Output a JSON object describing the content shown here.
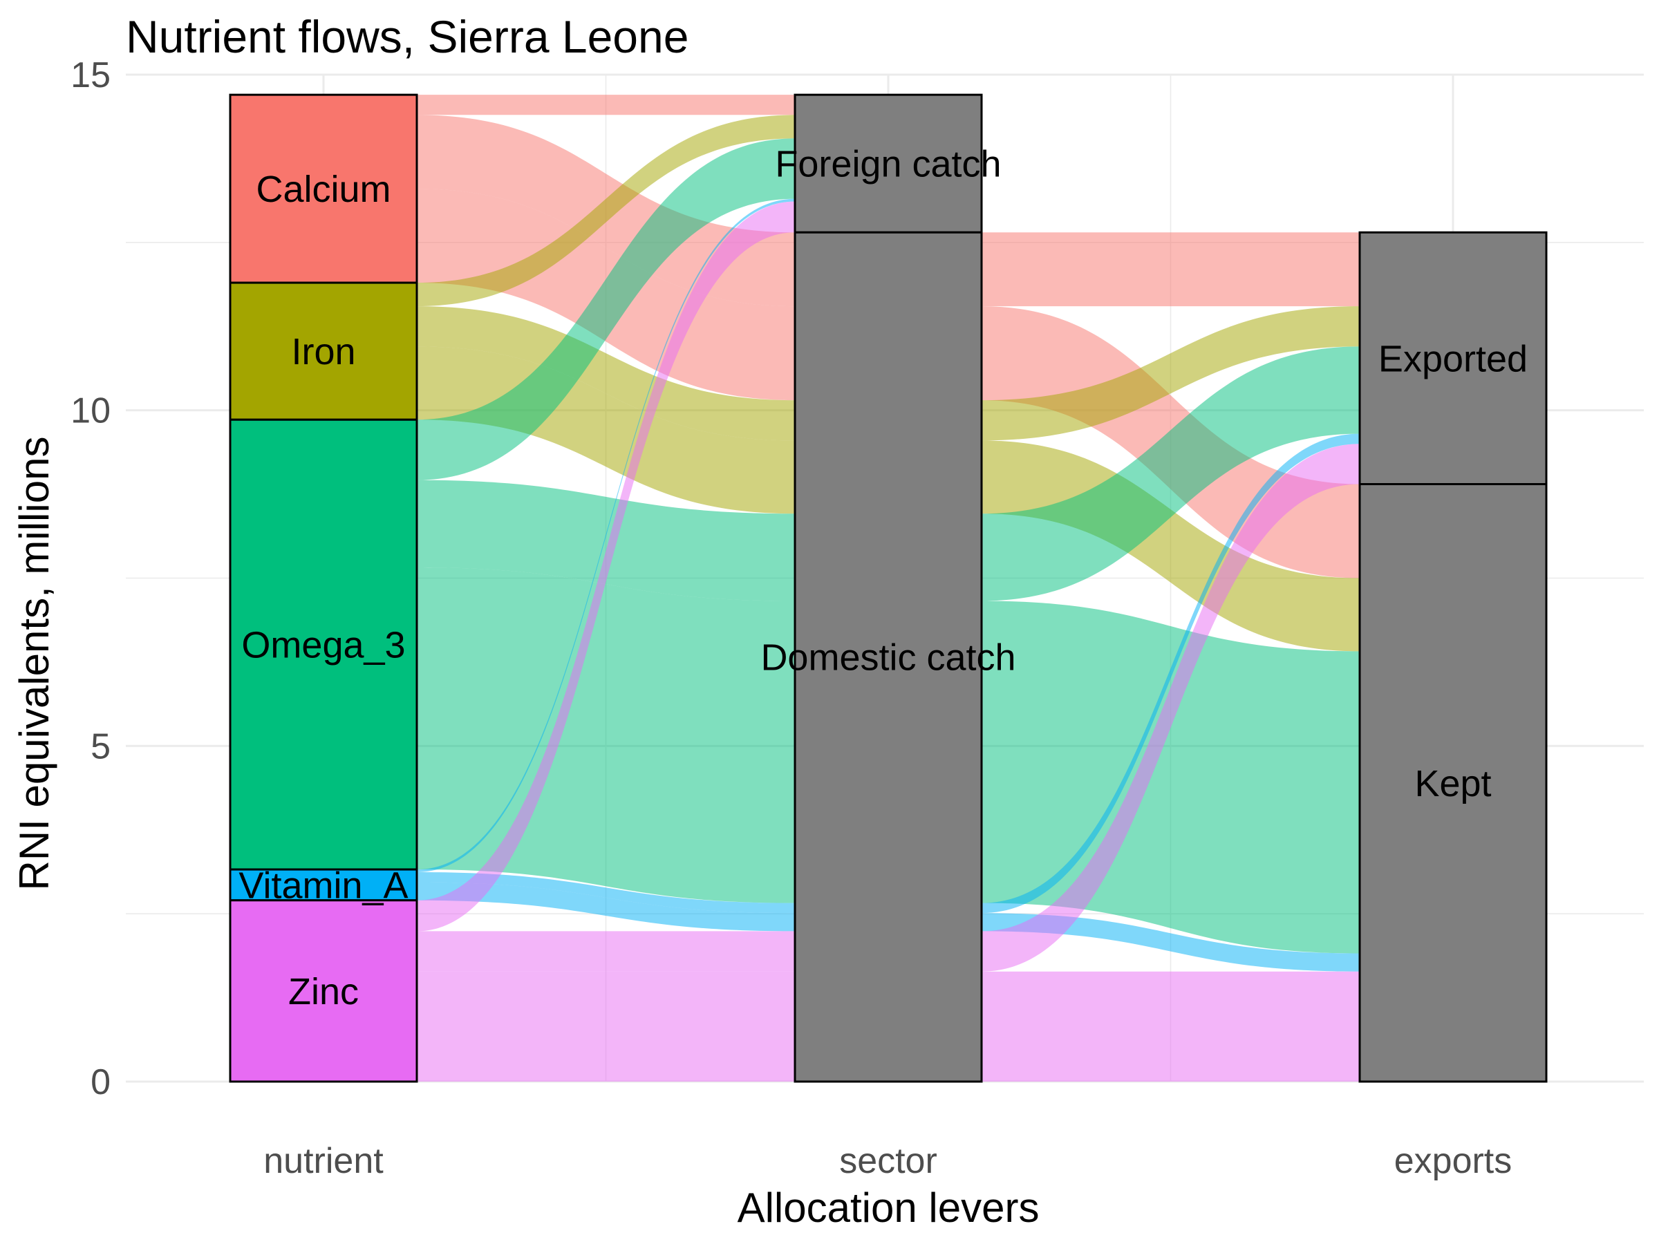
{
  "chart_data": {
    "type": "alluvial",
    "title": "Nutrient flows, Sierra Leone",
    "xlabel": "Allocation levers",
    "ylabel": "RNI equivalents, millions",
    "ylim": [
      0,
      15
    ],
    "yticks": [
      0,
      5,
      10,
      15
    ],
    "grid": true,
    "axes": [
      "nutrient",
      "sector",
      "exports"
    ],
    "strata": {
      "nutrient": [
        {
          "label": "Calcium",
          "value": 2.8,
          "color": "#F8766D"
        },
        {
          "label": "Iron",
          "value": 2.04,
          "color": "#A3A500"
        },
        {
          "label": "Omega_3",
          "value": 6.7,
          "color": "#00BF7D"
        },
        {
          "label": "Vitamin_A",
          "value": 0.46,
          "color": "#00B0F6"
        },
        {
          "label": "Zinc",
          "value": 2.7,
          "color": "#E76BF3"
        }
      ],
      "sector": [
        {
          "label": "Foreign catch",
          "value": 2.05,
          "color": "#7F7F7F"
        },
        {
          "label": "Domestic catch",
          "value": 12.65,
          "color": "#7F7F7F"
        }
      ],
      "exports": [
        {
          "label": "Exported",
          "value": 3.75,
          "color": "#7F7F7F"
        },
        {
          "label": "Kept",
          "value": 8.9,
          "color": "#7F7F7F"
        }
      ]
    },
    "flows": [
      {
        "nutrient": "Calcium",
        "sector": "Foreign catch",
        "exports": null,
        "value": 0.3
      },
      {
        "nutrient": "Calcium",
        "sector": "Domestic catch",
        "exports": "Exported",
        "value": 1.1
      },
      {
        "nutrient": "Calcium",
        "sector": "Domestic catch",
        "exports": "Kept",
        "value": 1.4
      },
      {
        "nutrient": "Iron",
        "sector": "Foreign catch",
        "exports": null,
        "value": 0.35
      },
      {
        "nutrient": "Iron",
        "sector": "Domestic catch",
        "exports": "Exported",
        "value": 0.6
      },
      {
        "nutrient": "Iron",
        "sector": "Domestic catch",
        "exports": "Kept",
        "value": 1.09
      },
      {
        "nutrient": "Omega_3",
        "sector": "Foreign catch",
        "exports": null,
        "value": 0.9
      },
      {
        "nutrient": "Omega_3",
        "sector": "Domestic catch",
        "exports": "Exported",
        "value": 1.3
      },
      {
        "nutrient": "Omega_3",
        "sector": "Domestic catch",
        "exports": "Kept",
        "value": 4.5
      },
      {
        "nutrient": "Vitamin_A",
        "sector": "Foreign catch",
        "exports": null,
        "value": 0.04
      },
      {
        "nutrient": "Vitamin_A",
        "sector": "Domestic catch",
        "exports": "Exported",
        "value": 0.15
      },
      {
        "nutrient": "Vitamin_A",
        "sector": "Domestic catch",
        "exports": "Kept",
        "value": 0.27
      },
      {
        "nutrient": "Zinc",
        "sector": "Foreign catch",
        "exports": null,
        "value": 0.46
      },
      {
        "nutrient": "Zinc",
        "sector": "Domestic catch",
        "exports": "Exported",
        "value": 0.6
      },
      {
        "nutrient": "Zinc",
        "sector": "Domestic catch",
        "exports": "Kept",
        "value": 1.64
      }
    ]
  }
}
